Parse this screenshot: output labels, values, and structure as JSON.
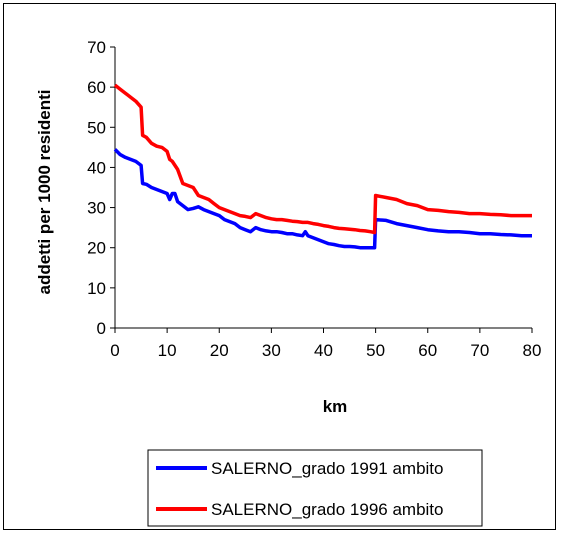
{
  "chart_data": {
    "type": "line",
    "xlabel": "km",
    "ylabel": "addetti per 1000 residenti",
    "xlim": [
      0,
      80
    ],
    "ylim": [
      0,
      70
    ],
    "xticks": [
      0,
      10,
      20,
      30,
      40,
      50,
      60,
      70,
      80
    ],
    "yticks": [
      0,
      10,
      20,
      30,
      40,
      50,
      60,
      70
    ],
    "grid": false,
    "legend_position": "bottom",
    "series": [
      {
        "name": "SALERNO_grado 1991 ambito",
        "color": "#0000ff",
        "points": [
          [
            0,
            44.5
          ],
          [
            1,
            43.2
          ],
          [
            2,
            42.5
          ],
          [
            3,
            42
          ],
          [
            4,
            41.5
          ],
          [
            5,
            40.5
          ],
          [
            5.3,
            36
          ],
          [
            6,
            35.8
          ],
          [
            7,
            35
          ],
          [
            8,
            34.5
          ],
          [
            9,
            34
          ],
          [
            10,
            33.5
          ],
          [
            10.5,
            32
          ],
          [
            11,
            33.5
          ],
          [
            11.5,
            33.5
          ],
          [
            12,
            31.5
          ],
          [
            13,
            30.5
          ],
          [
            14,
            29.5
          ],
          [
            15,
            29.8
          ],
          [
            16,
            30.2
          ],
          [
            17,
            29.5
          ],
          [
            18,
            29
          ],
          [
            19,
            28.5
          ],
          [
            20,
            28
          ],
          [
            21,
            27
          ],
          [
            22,
            26.5
          ],
          [
            23,
            26
          ],
          [
            24,
            25
          ],
          [
            25,
            24.5
          ],
          [
            26,
            24
          ],
          [
            27,
            25
          ],
          [
            28,
            24.5
          ],
          [
            29,
            24.2
          ],
          [
            30,
            24
          ],
          [
            31,
            24
          ],
          [
            32,
            23.8
          ],
          [
            33,
            23.5
          ],
          [
            34,
            23.5
          ],
          [
            35,
            23.2
          ],
          [
            36,
            23
          ],
          [
            36.5,
            24
          ],
          [
            37,
            23
          ],
          [
            38,
            22.5
          ],
          [
            39,
            22
          ],
          [
            40,
            21.5
          ],
          [
            41,
            21
          ],
          [
            42,
            20.8
          ],
          [
            43,
            20.5
          ],
          [
            44,
            20.3
          ],
          [
            45,
            20.3
          ],
          [
            46,
            20.2
          ],
          [
            47,
            20
          ],
          [
            48,
            20
          ],
          [
            49,
            20
          ],
          [
            49.8,
            20
          ],
          [
            50,
            27
          ],
          [
            52,
            26.8
          ],
          [
            54,
            26
          ],
          [
            56,
            25.5
          ],
          [
            58,
            25
          ],
          [
            60,
            24.5
          ],
          [
            62,
            24.2
          ],
          [
            64,
            24
          ],
          [
            66,
            24
          ],
          [
            68,
            23.8
          ],
          [
            70,
            23.5
          ],
          [
            72,
            23.5
          ],
          [
            74,
            23.3
          ],
          [
            76,
            23.2
          ],
          [
            78,
            23
          ],
          [
            80,
            23
          ]
        ]
      },
      {
        "name": "SALERNO_grado 1996 ambito",
        "color": "#ff0000",
        "points": [
          [
            0,
            60.5
          ],
          [
            1,
            59.5
          ],
          [
            2,
            58.5
          ],
          [
            3,
            57.5
          ],
          [
            4,
            56.5
          ],
          [
            5,
            55
          ],
          [
            5.3,
            48
          ],
          [
            6,
            47.5
          ],
          [
            7,
            46
          ],
          [
            8,
            45.3
          ],
          [
            9,
            45
          ],
          [
            10,
            44
          ],
          [
            10.5,
            42
          ],
          [
            11,
            41.5
          ],
          [
            12,
            39.5
          ],
          [
            13,
            36
          ],
          [
            14,
            35.5
          ],
          [
            15,
            35
          ],
          [
            16,
            33
          ],
          [
            17,
            32.5
          ],
          [
            18,
            32
          ],
          [
            19,
            31
          ],
          [
            20,
            30
          ],
          [
            21,
            29.5
          ],
          [
            22,
            29
          ],
          [
            23,
            28.5
          ],
          [
            24,
            28
          ],
          [
            25,
            27.8
          ],
          [
            26,
            27.5
          ],
          [
            27,
            28.5
          ],
          [
            28,
            28
          ],
          [
            29,
            27.5
          ],
          [
            30,
            27.2
          ],
          [
            31,
            27
          ],
          [
            32,
            27
          ],
          [
            33,
            26.8
          ],
          [
            34,
            26.6
          ],
          [
            35,
            26.5
          ],
          [
            36,
            26.3
          ],
          [
            37,
            26.3
          ],
          [
            38,
            26
          ],
          [
            39,
            25.8
          ],
          [
            40,
            25.5
          ],
          [
            41,
            25.3
          ],
          [
            42,
            25
          ],
          [
            43,
            24.8
          ],
          [
            44,
            24.7
          ],
          [
            45,
            24.6
          ],
          [
            46,
            24.5
          ],
          [
            47,
            24.3
          ],
          [
            48,
            24.2
          ],
          [
            49,
            24
          ],
          [
            49.8,
            23.8
          ],
          [
            50,
            33
          ],
          [
            52,
            32.5
          ],
          [
            54,
            32
          ],
          [
            56,
            31
          ],
          [
            58,
            30.5
          ],
          [
            60,
            29.5
          ],
          [
            62,
            29.3
          ],
          [
            64,
            29
          ],
          [
            66,
            28.8
          ],
          [
            68,
            28.5
          ],
          [
            70,
            28.5
          ],
          [
            72,
            28.3
          ],
          [
            74,
            28.2
          ],
          [
            76,
            28
          ],
          [
            78,
            28
          ],
          [
            80,
            28
          ]
        ]
      }
    ]
  }
}
